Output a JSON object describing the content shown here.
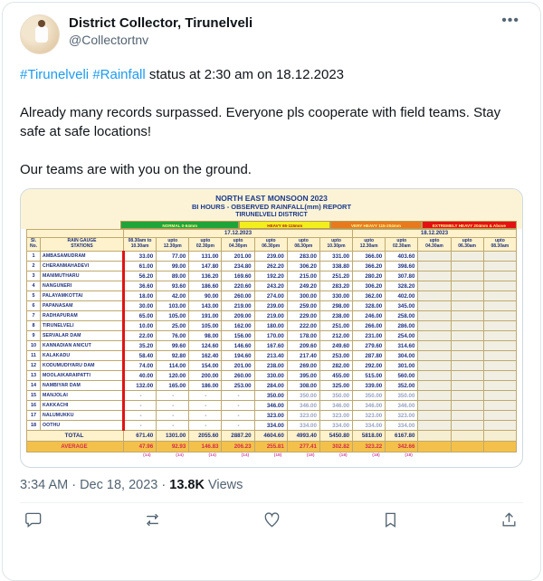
{
  "tweet": {
    "author": "District Collector, Tirunelveli",
    "handle": "@Collectortnv",
    "hashtag1": "#Tirunelveli",
    "hashtag2": "#Rainfall",
    "line1_rest": " status at 2:30 am on 18.12.2023",
    "para2": "Already many records surpassed. Everyone pls cooperate with field teams. Stay safe at safe locations!",
    "para3": "Our teams are with you on the ground."
  },
  "report": {
    "title1": "NORTH EAST MONSOON 2023",
    "title2": "BI HOURS - OBSERVED RAINFALL(mm) REPORT",
    "title3": "TIRUNELVELI DISTRICT",
    "legend": [
      {
        "label": "NORMAL 0-64mm",
        "bg": "#1fa43a",
        "fg": "#fdfa8c",
        "width": "30%"
      },
      {
        "label": "HEAVY 65-115mm",
        "bg": "#f2ee1d",
        "fg": "#b42222",
        "width": "23%"
      },
      {
        "label": "VERY HEAVY 115-204mm",
        "bg": "#e87a1e",
        "fg": "#fdfa8c",
        "width": "23%"
      },
      {
        "label": "EXTREMELY HEAVY 204mm & Above",
        "bg": "#e31212",
        "fg": "#fdfa8c",
        "width": "24%"
      }
    ],
    "col_headers": {
      "sl": "Sl.<br>No.",
      "station": "RAIN GAUGE<br>STATIONS"
    },
    "dates": [
      {
        "label": "17.12.2023",
        "span": 7
      },
      {
        "label": "18.12.2023",
        "span": 5
      }
    ],
    "time_cols": [
      [
        "08.30am to",
        "10.30am"
      ],
      [
        "upto",
        "12.30pm"
      ],
      [
        "upto",
        "02.30pm"
      ],
      [
        "upto",
        "04.30pm"
      ],
      [
        "upto",
        "06.30pm"
      ],
      [
        "upto",
        "08.30pm"
      ],
      [
        "upto",
        "10.30pm"
      ],
      [
        "upto",
        "12.30am"
      ],
      [
        "upto",
        "02.30am"
      ],
      [
        "upto",
        "04.30am"
      ],
      [
        "upto",
        "06.30am"
      ],
      [
        "upto",
        "08.30am"
      ]
    ],
    "rows": [
      {
        "no": 1,
        "station": "AMBASAMUDRAM",
        "values": [
          "33.00",
          "77.00",
          "131.00",
          "201.00",
          "239.00",
          "283.00",
          "331.00",
          "366.00",
          "403.60",
          "",
          "",
          ""
        ]
      },
      {
        "no": 2,
        "station": "CHERANMAHADEVI",
        "values": [
          "61.00",
          "99.00",
          "147.80",
          "234.80",
          "262.20",
          "306.20",
          "338.80",
          "366.20",
          "398.60",
          "",
          "",
          ""
        ]
      },
      {
        "no": 3,
        "station": "MANIMUTHARU",
        "values": [
          "56.20",
          "89.00",
          "136.20",
          "169.60",
          "192.20",
          "215.00",
          "251.20",
          "280.20",
          "307.80",
          "",
          "",
          ""
        ]
      },
      {
        "no": 4,
        "station": "NANGUNERI",
        "values": [
          "36.60",
          "93.60",
          "186.60",
          "220.60",
          "243.20",
          "249.20",
          "283.20",
          "306.20",
          "328.20",
          "",
          "",
          ""
        ]
      },
      {
        "no": 5,
        "station": "PALAYAMKOTTAI",
        "values": [
          "18.00",
          "42.00",
          "90.00",
          "260.00",
          "274.00",
          "300.00",
          "330.00",
          "362.00",
          "402.00",
          "",
          "",
          ""
        ]
      },
      {
        "no": 6,
        "station": "PAPANASAM",
        "values": [
          "30.00",
          "103.00",
          "143.00",
          "219.00",
          "239.00",
          "259.00",
          "298.00",
          "328.00",
          "345.00",
          "",
          "",
          ""
        ]
      },
      {
        "no": 7,
        "station": "RADHAPURAM",
        "values": [
          "65.00",
          "105.00",
          "191.00",
          "209.00",
          "219.00",
          "229.00",
          "238.00",
          "246.00",
          "258.00",
          "",
          "",
          ""
        ]
      },
      {
        "no": 8,
        "station": "TIRUNELVELI",
        "values": [
          "10.00",
          "25.00",
          "105.00",
          "162.00",
          "180.00",
          "222.00",
          "251.00",
          "266.00",
          "286.00",
          "",
          "",
          ""
        ]
      },
      {
        "no": 9,
        "station": "SERVALAR DAM",
        "values": [
          "22.00",
          "76.00",
          "98.00",
          "156.00",
          "170.00",
          "178.00",
          "212.00",
          "231.00",
          "254.00",
          "",
          "",
          ""
        ]
      },
      {
        "no": 10,
        "station": "KANNADIAN ANICUT",
        "values": [
          "35.20",
          "99.60",
          "124.60",
          "146.60",
          "167.60",
          "209.60",
          "249.60",
          "279.60",
          "314.60",
          "",
          "",
          ""
        ]
      },
      {
        "no": 11,
        "station": "KALAKADU",
        "values": [
          "58.40",
          "92.80",
          "162.40",
          "194.60",
          "213.40",
          "217.40",
          "253.00",
          "287.80",
          "304.00",
          "",
          "",
          ""
        ]
      },
      {
        "no": 12,
        "station": "KODUMUDIYARU DAM",
        "values": [
          "74.00",
          "114.00",
          "154.00",
          "201.00",
          "238.00",
          "269.00",
          "282.00",
          "292.00",
          "301.00",
          "",
          "",
          ""
        ]
      },
      {
        "no": 13,
        "station": "MOOLAIKARAIPATTI",
        "values": [
          "40.00",
          "120.00",
          "200.00",
          "260.00",
          "330.00",
          "395.00",
          "455.00",
          "515.00",
          "560.00",
          "",
          "",
          ""
        ]
      },
      {
        "no": 14,
        "station": "NAMBIYAR DAM",
        "values": [
          "132.00",
          "165.00",
          "186.00",
          "253.00",
          "284.00",
          "308.00",
          "325.00",
          "339.00",
          "352.00",
          "",
          "",
          ""
        ]
      },
      {
        "no": 15,
        "station": "MANJOLAI",
        "muted": [
          5,
          6,
          7,
          8
        ],
        "values": [
          "-",
          "-",
          "-",
          "-",
          "350.00",
          "350.00",
          "350.00",
          "350.00",
          "350.00",
          "",
          "",
          ""
        ]
      },
      {
        "no": 16,
        "station": "KAKKACHI",
        "muted": [
          5,
          6,
          7,
          8
        ],
        "values": [
          "-",
          "-",
          "-",
          "-",
          "346.00",
          "346.00",
          "346.00",
          "346.00",
          "346.00",
          "",
          "",
          ""
        ]
      },
      {
        "no": 17,
        "station": "NALUMUKKU",
        "muted": [
          5,
          6,
          7,
          8
        ],
        "values": [
          "-",
          "-",
          "-",
          "-",
          "323.00",
          "323.00",
          "323.00",
          "323.00",
          "323.00",
          "",
          "",
          ""
        ]
      },
      {
        "no": 18,
        "station": "OOTHU",
        "muted": [
          5,
          6,
          7,
          8
        ],
        "values": [
          "-",
          "-",
          "-",
          "-",
          "334.00",
          "334.00",
          "334.00",
          "334.00",
          "334.00",
          "",
          "",
          ""
        ]
      }
    ],
    "total": {
      "label": "TOTAL",
      "values": [
        "671.40",
        "1301.00",
        "2055.60",
        "2887.20",
        "4604.60",
        "4993.40",
        "5450.80",
        "5818.00",
        "6167.80",
        "",
        "",
        ""
      ]
    },
    "average": {
      "label": "AVERAGE",
      "values": [
        "47.96",
        "92.93",
        "146.83",
        "206.23",
        "255.81",
        "277.41",
        "302.82",
        "323.22",
        "342.66",
        "",
        "",
        ""
      ]
    },
    "counts": [
      "(14)",
      "(14)",
      "(14)",
      "(14)",
      "(18)",
      "(18)",
      "(18)",
      "(18)",
      "(18)",
      "",
      "",
      ""
    ]
  },
  "footer": {
    "timestamp": "3:34 AM · Dec 18, 2023",
    "separator": "·",
    "views_count": "13.8K",
    "views_label": "Views"
  },
  "colors": {
    "hashtag": "#1d9bf0",
    "navy_text": "#1d2f7c",
    "red_bar": "#e01414",
    "average_bg": "#f3c14b",
    "average_text": "#d42b4b",
    "header_bg": "#fdf2cc"
  }
}
